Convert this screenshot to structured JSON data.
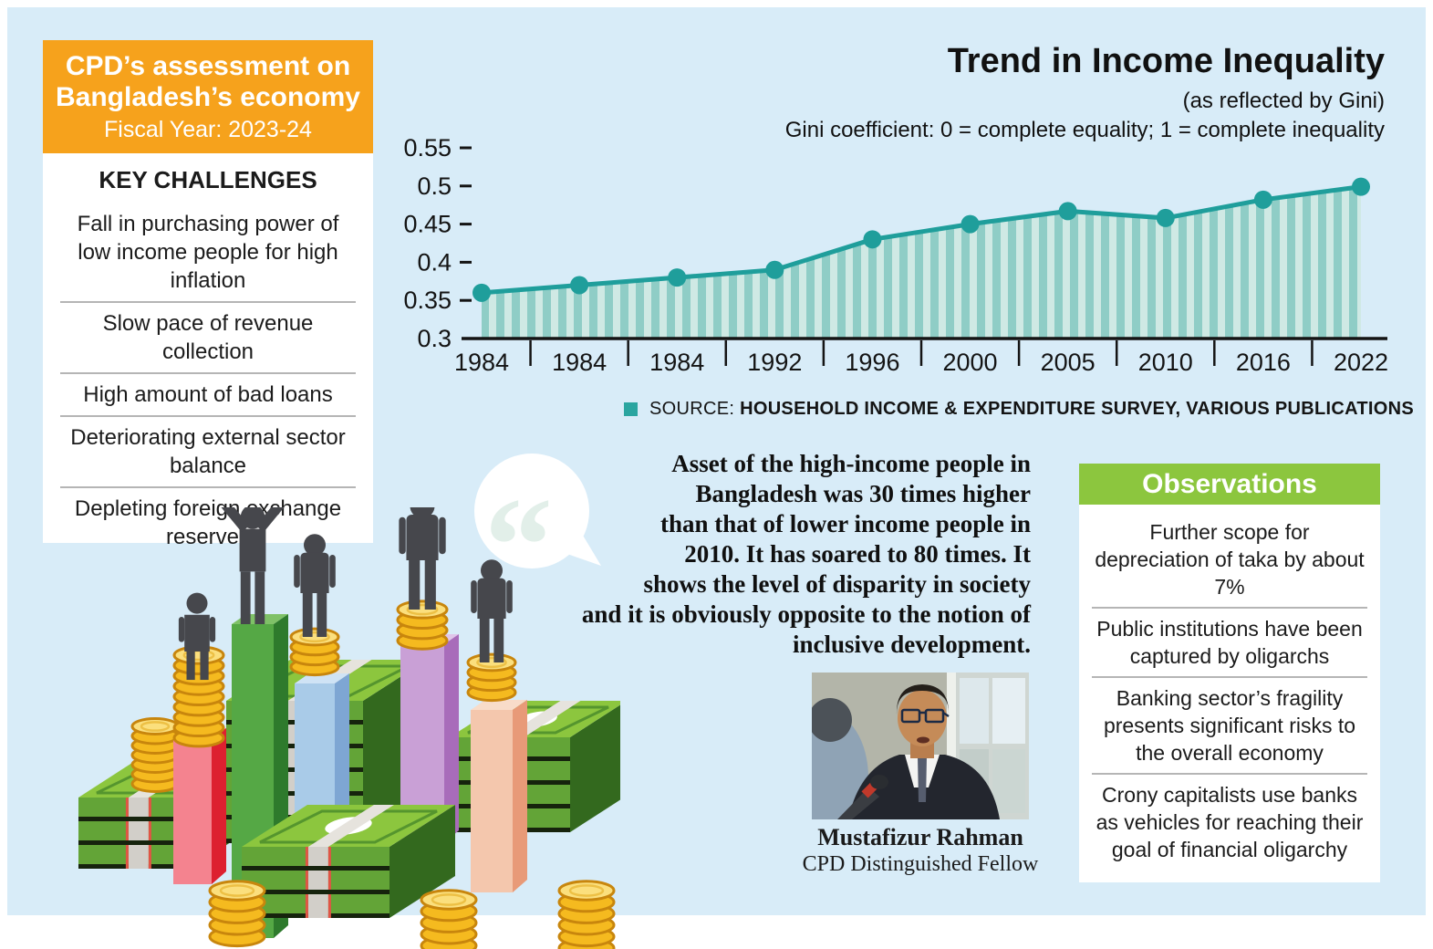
{
  "colors": {
    "background": "#d8ecf8",
    "accent_orange": "#f6a21c",
    "accent_green": "#8cc63e",
    "accent_teal": "#1f9e9b"
  },
  "header_box": {
    "title_line1": "CPD’s assessment on",
    "title_line2": "Bangladesh’s economy",
    "subtitle": "Fiscal Year: 2023-24"
  },
  "key_challenges": {
    "title": "KEY CHALLENGES",
    "items": [
      "Fall in purchasing power of low income people for high inflation",
      "Slow pace of revenue collection",
      "High amount of bad loans",
      "Deteriorating external sector balance",
      "Depleting foreign exchange reserves"
    ]
  },
  "chart_data": {
    "type": "area",
    "title": "Trend in Income Inequality",
    "subtitle": "(as reflected by Gini)",
    "note": "Gini coefficient: 0 = complete equality; 1 = complete inequality",
    "categories": [
      "1984",
      "1984",
      "1984",
      "1992",
      "1996",
      "2000",
      "2005",
      "2010",
      "2016",
      "2022"
    ],
    "values": [
      0.36,
      0.37,
      0.38,
      0.39,
      0.43,
      0.45,
      0.467,
      0.458,
      0.482,
      0.499
    ],
    "yticks": [
      "0.3",
      "0.35",
      "0.4",
      "0.45",
      "0.5",
      "0.55"
    ],
    "ylim": [
      0.3,
      0.55
    ],
    "xlabel": "",
    "ylabel": "",
    "grid": false,
    "legend": "none",
    "line_color": "#1f9e9b",
    "dot_color": "#1f9e9b",
    "stripe_dark": "#8fcdc6",
    "stripe_light": "#cfe9e4"
  },
  "source": {
    "label": "SOURCE:",
    "text": "HOUSEHOLD INCOME & EXPENDITURE SURVEY, VARIOUS PUBLICATIONS",
    "bullet_color": "#2aa5a0"
  },
  "quote": {
    "lines": [
      "Asset of the high-income people in",
      "Bangladesh was 30 times higher",
      "than that of lower income people in",
      "2010. It has soared to 80 times. It",
      "shows the level of disparity in society",
      "and it is obviously opposite to the notion of",
      "inclusive development."
    ]
  },
  "icons": {
    "quote_mark": "“"
  },
  "person": {
    "name": "Mustafizur Rahman",
    "role": "CPD Distinguished Fellow"
  },
  "observations": {
    "title": "Observations",
    "items": [
      "Further scope for depreciation of taka by about 7%",
      "Public institutions have been captured by oligarchs",
      "Banking sector’s fragility presents significant risks to the overall economy",
      "Crony capitalists use banks as vehicles for reaching their goal of financial oligarchy"
    ]
  }
}
